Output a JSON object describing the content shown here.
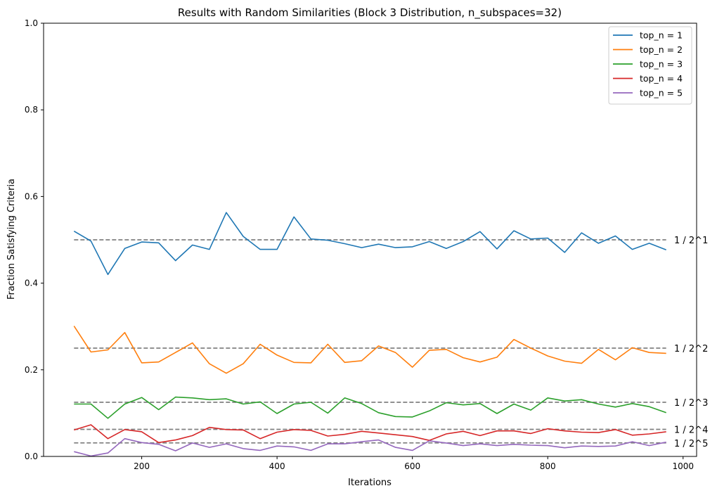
{
  "chart_data": {
    "type": "line",
    "title": "Results with Random Similarities (Block 3 Distribution, n_subspaces=32)",
    "xlabel": "Iterations",
    "ylabel": "Fraction Satisfying Criteria",
    "xlim": [
      55,
      1020
    ],
    "ylim": [
      0,
      1.0
    ],
    "xticks": [
      200,
      400,
      600,
      800,
      1000
    ],
    "yticks": [
      0.0,
      0.2,
      0.4,
      0.6,
      0.8,
      1.0
    ],
    "xtick_labels": [
      "200",
      "400",
      "600",
      "800",
      "1000"
    ],
    "ytick_labels": [
      "0.0",
      "0.2",
      "0.4",
      "0.6",
      "0.8",
      "1.0"
    ],
    "grid": false,
    "legend_position": "top-right",
    "x": [
      100,
      125,
      150,
      175,
      200,
      225,
      250,
      275,
      300,
      325,
      350,
      375,
      400,
      425,
      450,
      475,
      500,
      525,
      550,
      575,
      600,
      625,
      650,
      675,
      700,
      725,
      750,
      775,
      800,
      825,
      850,
      875,
      900,
      925,
      950,
      975
    ],
    "series": [
      {
        "name": "top_n = 1",
        "color": "#1f77b4",
        "values": [
          0.52,
          0.497,
          0.42,
          0.48,
          0.495,
          0.493,
          0.452,
          0.488,
          0.478,
          0.563,
          0.508,
          0.478,
          0.478,
          0.553,
          0.502,
          0.499,
          0.491,
          0.482,
          0.49,
          0.482,
          0.484,
          0.496,
          0.48,
          0.496,
          0.519,
          0.479,
          0.521,
          0.502,
          0.504,
          0.471,
          0.516,
          0.492,
          0.509,
          0.478,
          0.492,
          0.477
        ]
      },
      {
        "name": "top_n = 2",
        "color": "#ff7f0e",
        "values": [
          0.301,
          0.241,
          0.246,
          0.286,
          0.216,
          0.218,
          0.24,
          0.262,
          0.214,
          0.192,
          0.214,
          0.259,
          0.234,
          0.217,
          0.216,
          0.259,
          0.217,
          0.221,
          0.255,
          0.24,
          0.206,
          0.245,
          0.247,
          0.228,
          0.218,
          0.229,
          0.27,
          0.25,
          0.232,
          0.22,
          0.215,
          0.247,
          0.223,
          0.251,
          0.24,
          0.238
        ]
      },
      {
        "name": "top_n = 3",
        "color": "#2ca02c",
        "values": [
          0.121,
          0.121,
          0.088,
          0.121,
          0.136,
          0.108,
          0.137,
          0.135,
          0.131,
          0.133,
          0.121,
          0.126,
          0.099,
          0.121,
          0.125,
          0.1,
          0.135,
          0.122,
          0.101,
          0.092,
          0.091,
          0.105,
          0.124,
          0.119,
          0.122,
          0.099,
          0.121,
          0.107,
          0.135,
          0.128,
          0.131,
          0.121,
          0.114,
          0.122,
          0.115,
          0.101
        ]
      },
      {
        "name": "top_n = 4",
        "color": "#d62728",
        "values": [
          0.061,
          0.073,
          0.041,
          0.062,
          0.057,
          0.032,
          0.038,
          0.048,
          0.067,
          0.062,
          0.061,
          0.041,
          0.056,
          0.062,
          0.06,
          0.047,
          0.051,
          0.058,
          0.054,
          0.05,
          0.046,
          0.037,
          0.052,
          0.058,
          0.048,
          0.059,
          0.059,
          0.053,
          0.064,
          0.059,
          0.056,
          0.055,
          0.062,
          0.049,
          0.052,
          0.057
        ]
      },
      {
        "name": "top_n = 5",
        "color": "#9467bd",
        "values": [
          0.011,
          0.001,
          0.008,
          0.041,
          0.032,
          0.028,
          0.013,
          0.031,
          0.021,
          0.029,
          0.018,
          0.014,
          0.024,
          0.022,
          0.014,
          0.029,
          0.029,
          0.034,
          0.038,
          0.021,
          0.014,
          0.036,
          0.031,
          0.025,
          0.029,
          0.025,
          0.028,
          0.026,
          0.025,
          0.02,
          0.024,
          0.023,
          0.024,
          0.034,
          0.025,
          0.033
        ]
      }
    ],
    "reference_lines": [
      {
        "label": "1 / 2^1",
        "value": 0.5
      },
      {
        "label": "1 / 2^2",
        "value": 0.25
      },
      {
        "label": "1 / 2^3",
        "value": 0.125
      },
      {
        "label": "1 / 2^4",
        "value": 0.0625
      },
      {
        "label": "1 / 2^5",
        "value": 0.03125
      }
    ],
    "reference_line_color": "#808080",
    "reference_xrange": [
      100,
      975
    ]
  }
}
